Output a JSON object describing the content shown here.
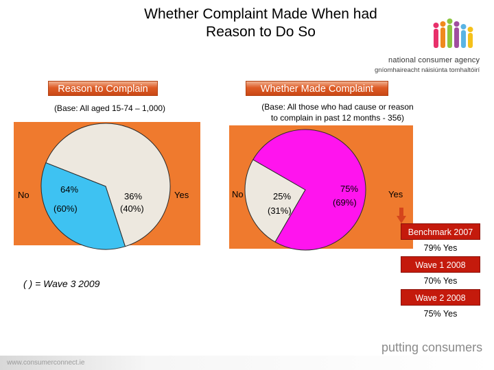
{
  "title_line1": "Whether Complaint Made When had",
  "title_line2": "Reason to Do So",
  "agency": {
    "name": "national consumer agency",
    "irish": "gníomhaireacht náisiúnta tomhaltóirí"
  },
  "colors": {
    "orange_panel": "#ef7a2e",
    "light_slice": "#ede8df",
    "cyan_slice": "#3ec2f2",
    "magenta_slice": "#ff14ee",
    "header": "#de5c26",
    "benchmark_red": "#c41a0c"
  },
  "chart_data": [
    {
      "type": "pie",
      "title": "Reason to Complain",
      "subtitle": "(Base: All aged 15-74 – 1,000)",
      "slices": [
        {
          "label": "No",
          "value": 64,
          "value_label": "64%",
          "prev_label": "(60%)",
          "color": "#ede8df"
        },
        {
          "label": "Yes",
          "value": 36,
          "value_label": "36%",
          "prev_label": "(40%)",
          "color": "#3ec2f2"
        }
      ]
    },
    {
      "type": "pie",
      "title": "Whether Made Complaint",
      "subtitle_line1": "(Base: All those who had cause or reason",
      "subtitle_line2": "to complain in past 12 months - 356)",
      "slices": [
        {
          "label": "No",
          "value": 25,
          "value_label": "25%",
          "prev_label": "(31%)",
          "color": "#ede8df"
        },
        {
          "label": "Yes",
          "value": 75,
          "value_label": "75%",
          "prev_label": "(69%)",
          "color": "#ff14ee"
        }
      ]
    }
  ],
  "footnote": "( ) = Wave 3 2009",
  "benchmarks": [
    {
      "header": "Benchmark 2007",
      "value": "79% Yes"
    },
    {
      "header": "Wave 1 2008",
      "value": "70% Yes"
    },
    {
      "header": "Wave 2 2008",
      "value": "75% Yes"
    }
  ],
  "tagline": "putting consumers first",
  "url": "www.consumerconnect.ie"
}
